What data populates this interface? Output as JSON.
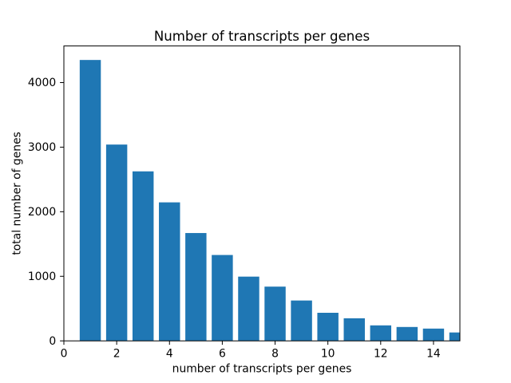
{
  "chart_data": {
    "type": "bar",
    "title": "Number of transcripts per genes",
    "xlabel": "number of transcripts per genes",
    "ylabel": "total number of genes",
    "x": [
      1,
      2,
      3,
      4,
      5,
      6,
      7,
      8,
      9,
      10,
      11,
      12,
      13,
      14,
      15
    ],
    "values": [
      4350,
      3040,
      2625,
      2145,
      1670,
      1330,
      995,
      840,
      625,
      435,
      350,
      240,
      215,
      190,
      130
    ],
    "x_tick_labels": [
      "0",
      "2",
      "4",
      "6",
      "8",
      "10",
      "12",
      "14"
    ],
    "x_tick_values": [
      0,
      2,
      4,
      6,
      8,
      10,
      12,
      14
    ],
    "y_tick_labels": [
      "0",
      "1000",
      "2000",
      "3000",
      "4000"
    ],
    "y_tick_values": [
      0,
      1000,
      2000,
      3000,
      4000
    ],
    "xlim": [
      0,
      15
    ],
    "ylim": [
      0,
      4567
    ],
    "bar_width": 0.8,
    "bar_color": "#1f77b4",
    "text_color": "#000000",
    "background": "#ffffff",
    "grid": false,
    "legend_position": "none"
  }
}
